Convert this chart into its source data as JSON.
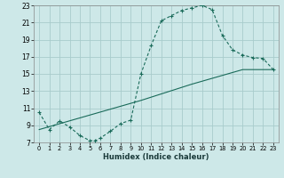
{
  "xlabel": "Humidex (Indice chaleur)",
  "bg_color": "#cde8e8",
  "grid_color": "#a8cccc",
  "line_color": "#1a6b5a",
  "xlim": [
    -0.5,
    23.5
  ],
  "ylim": [
    7,
    23
  ],
  "xticks": [
    0,
    1,
    2,
    3,
    4,
    5,
    6,
    7,
    8,
    9,
    10,
    11,
    12,
    13,
    14,
    15,
    16,
    17,
    18,
    19,
    20,
    21,
    22,
    23
  ],
  "yticks": [
    7,
    9,
    11,
    13,
    15,
    17,
    19,
    21,
    23
  ],
  "curve1_x": [
    0,
    1,
    2,
    3,
    4,
    5,
    5.5,
    6,
    7,
    8,
    9,
    10,
    11,
    12,
    13,
    14,
    15,
    16,
    17,
    18,
    19,
    20,
    21,
    22,
    23
  ],
  "curve1_y": [
    10.5,
    8.5,
    9.5,
    8.8,
    7.8,
    7.2,
    7.2,
    7.5,
    8.3,
    9.2,
    9.6,
    15.0,
    18.3,
    21.2,
    21.8,
    22.4,
    22.7,
    23.0,
    22.5,
    19.5,
    17.8,
    17.2,
    16.9,
    16.8,
    15.5
  ],
  "curve2_x": [
    0,
    5,
    10,
    15,
    20,
    23
  ],
  "curve2_y": [
    8.5,
    10.2,
    11.9,
    13.8,
    15.5,
    15.5
  ]
}
